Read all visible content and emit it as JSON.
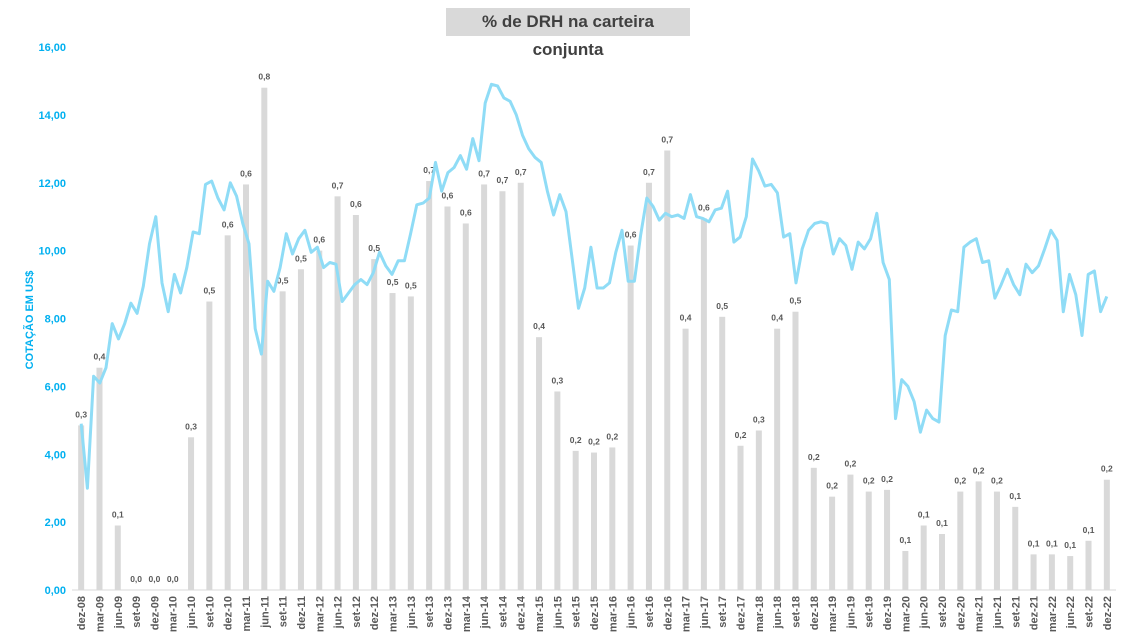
{
  "chart_data": {
    "type": "bar+line",
    "title": "% de DRH na carteira conjunta",
    "ylabel": "COTAÇÃO EM US$",
    "ylim": [
      0,
      16
    ],
    "yticks": [
      "0,00",
      "2,00",
      "4,00",
      "6,00",
      "8,00",
      "10,00",
      "12,00",
      "14,00",
      "16,00"
    ],
    "categories": [
      "dez-08",
      "mar-09",
      "jun-09",
      "set-09",
      "dez-09",
      "mar-10",
      "jun-10",
      "set-10",
      "dez-10",
      "mar-11",
      "jun-11",
      "set-11",
      "dez-11",
      "mar-12",
      "jun-12",
      "set-12",
      "dez-12",
      "mar-13",
      "jun-13",
      "set-13",
      "dez-13",
      "mar-14",
      "jun-14",
      "set-14",
      "dez-14",
      "mar-15",
      "jun-15",
      "set-15",
      "dez-15",
      "mar-16",
      "jun-16",
      "set-16",
      "dez-16",
      "mar-17",
      "jun-17",
      "set-17",
      "dez-17",
      "mar-18",
      "jun-18",
      "set-18",
      "dez-18",
      "mar-19",
      "jun-19",
      "set-19",
      "dez-19",
      "mar-20",
      "jun-20",
      "set-20",
      "dez-20",
      "mar-21",
      "jun-21",
      "set-21",
      "dez-21",
      "mar-22",
      "jun-22",
      "set-22",
      "dez-22"
    ],
    "bar_series": {
      "name": "% de DRH na carteira conjunta",
      "color": "#d9d9d9",
      "values": [
        4.85,
        6.55,
        1.9,
        0,
        0,
        0,
        4.5,
        8.5,
        10.45,
        11.95,
        14.8,
        8.8,
        9.45,
        10.0,
        11.6,
        11.05,
        9.75,
        8.75,
        8.65,
        12.05,
        11.3,
        10.8,
        11.95,
        11.75,
        12.0,
        7.45,
        5.85,
        4.1,
        4.05,
        4.2,
        10.15,
        12.0,
        12.95,
        7.7,
        10.95,
        8.05,
        4.25,
        4.7,
        7.7,
        8.2,
        3.6,
        2.75,
        3.4,
        2.9,
        2.95,
        1.15,
        1.9,
        1.65,
        2.9,
        3.2,
        2.9,
        2.45,
        1.05,
        1.05,
        1.0,
        1.45,
        3.25
      ],
      "labels": [
        "0,3",
        "0,4",
        "0,1",
        "0,0",
        "0,0",
        "0,0",
        "0,3",
        "0,5",
        "0,6",
        "0,6",
        "0,8",
        "0,5",
        "0,5",
        "0,6",
        "0,7",
        "0,6",
        "0,5",
        "0,5",
        "0,5",
        "0,7",
        "0,6",
        "0,6",
        "0,7",
        "0,7",
        "0,7",
        "0,4",
        "0,3",
        "0,2",
        "0,2",
        "0,2",
        "0,6",
        "0,7",
        "0,7",
        "0,4",
        "0,6",
        "0,5",
        "0,2",
        "0,3",
        "0,4",
        "0,5",
        "0,2",
        "0,2",
        "0,2",
        "0,2",
        "0,2",
        "0,1",
        "0,1",
        "0,1",
        "0,2",
        "0,2",
        "0,2",
        "0,1",
        "0,1",
        "0,1",
        "0,1",
        "0,1",
        "0,2"
      ]
    },
    "line_series": {
      "name": "Cotação em US$",
      "color": "#8fdcf6",
      "values": [
        4.9,
        3.0,
        6.3,
        6.1,
        6.55,
        7.85,
        7.4,
        7.85,
        8.45,
        8.15,
        8.95,
        10.2,
        11.0,
        9.05,
        8.2,
        9.3,
        8.75,
        9.5,
        10.55,
        10.5,
        11.95,
        12.05,
        11.55,
        11.2,
        12.0,
        11.6,
        10.8,
        10.2,
        7.7,
        6.95,
        9.1,
        8.8,
        9.5,
        10.5,
        9.9,
        10.35,
        10.6,
        9.95,
        10.1,
        9.5,
        9.65,
        9.6,
        8.5,
        8.75,
        9.0,
        9.15,
        9.0,
        9.35,
        9.95,
        9.55,
        9.3,
        9.7,
        9.7,
        10.5,
        11.35,
        11.4,
        11.55,
        12.6,
        11.75,
        12.3,
        12.45,
        12.8,
        12.4,
        13.3,
        12.65,
        14.35,
        14.9,
        14.85,
        14.5,
        14.4,
        14.0,
        13.4,
        13.0,
        12.75,
        12.6,
        11.75,
        11.05,
        11.65,
        11.15,
        9.75,
        8.3,
        8.9,
        10.1,
        8.9,
        8.9,
        9.05,
        9.95,
        10.6,
        9.1,
        9.1,
        10.45,
        11.55,
        11.3,
        10.9,
        11.1,
        11.0,
        11.05,
        10.95,
        11.65,
        11.0,
        10.95,
        10.85,
        11.2,
        11.25,
        11.75,
        10.25,
        10.4,
        11.0,
        12.7,
        12.35,
        11.9,
        11.95,
        11.7,
        10.4,
        10.5,
        9.05,
        10.05,
        10.6,
        10.8,
        10.85,
        10.8,
        9.9,
        10.35,
        10.15,
        9.45,
        10.25,
        10.05,
        10.35,
        11.1,
        9.65,
        9.15,
        5.05,
        6.2,
        6.0,
        5.55,
        4.65,
        5.3,
        5.05,
        4.95,
        7.5,
        8.25,
        8.2,
        10.1,
        10.25,
        10.35,
        9.65,
        9.7,
        8.6,
        9.0,
        9.45,
        9.0,
        8.7,
        9.6,
        9.35,
        9.55,
        10.05,
        10.6,
        10.3,
        8.2,
        9.3,
        8.7,
        7.5,
        9.3,
        9.4,
        8.2,
        8.65
      ]
    }
  }
}
